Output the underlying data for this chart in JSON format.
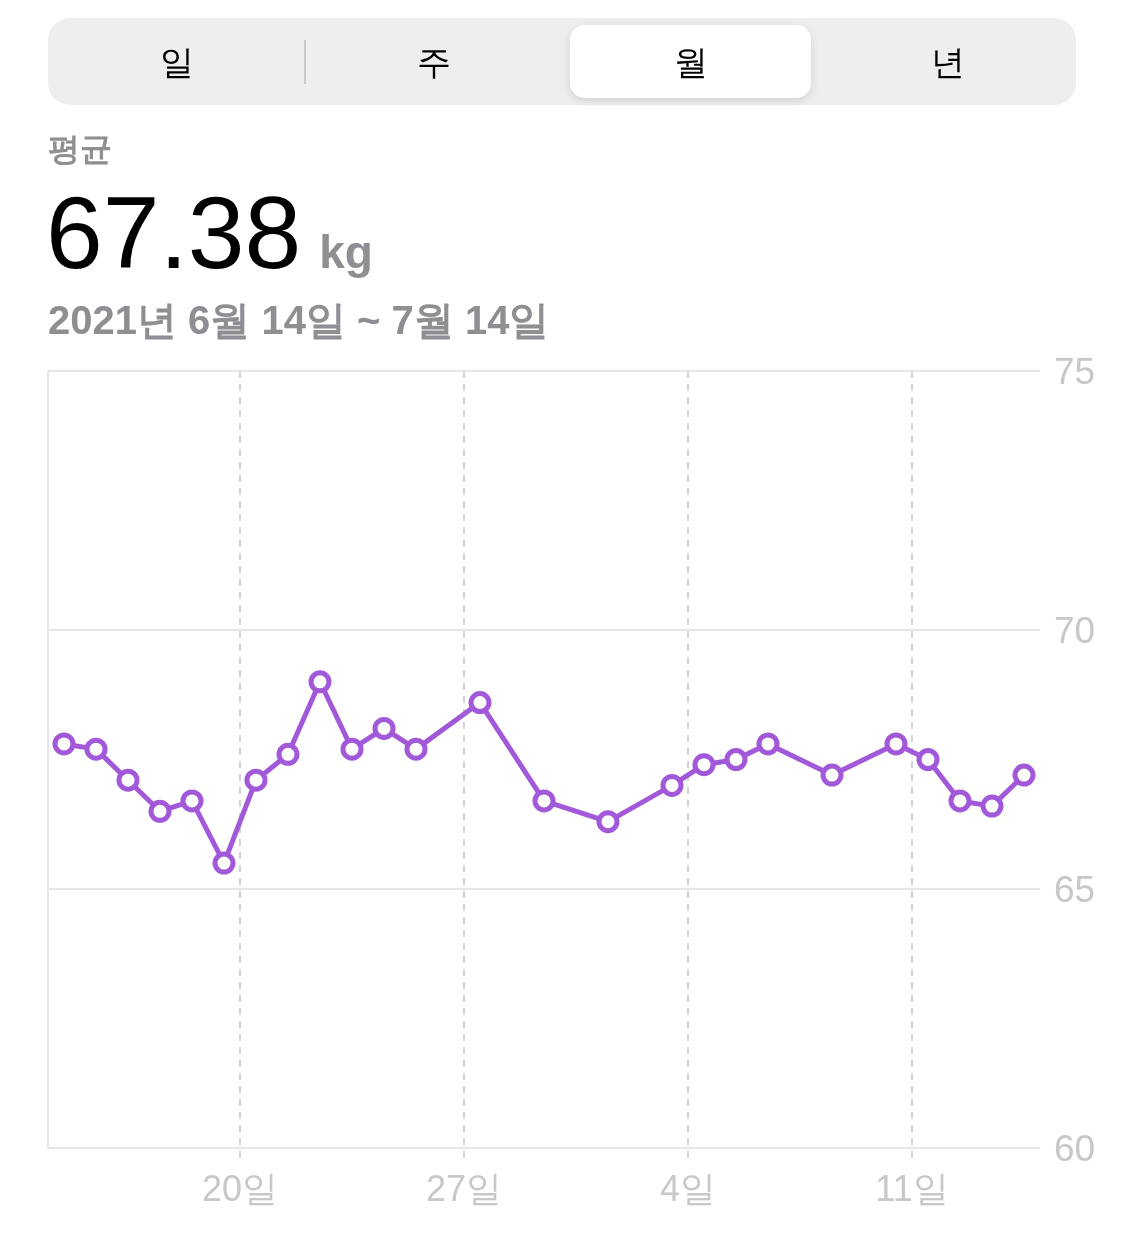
{
  "chart_data": {
    "type": "line",
    "title": "67.38",
    "ylabel": "kg",
    "subtitle": "2021년 6월 14일 ~ 7월 14일",
    "annotations": [
      "일",
      "주",
      "월",
      "년",
      "평균"
    ],
    "x": [
      "2021-06-14T12:00",
      "2021-06-15T12:00",
      "2021-06-16T12:00",
      "2021-06-17T12:00",
      "2021-06-18T12:00",
      "2021-06-19T12:00",
      "2021-06-20T12:00",
      "2021-06-21T12:00",
      "2021-06-22T12:00",
      "2021-06-23T12:00",
      "2021-06-24T12:00",
      "2021-06-25T12:00",
      "2021-06-27T12:00",
      "2021-06-29T12:00",
      "2021-07-01T12:00",
      "2021-07-03T12:00",
      "2021-07-04T12:00",
      "2021-07-05T12:00",
      "2021-07-06T12:00",
      "2021-07-08T12:00",
      "2021-07-10T12:00",
      "2021-07-11T12:00",
      "2021-07-12T12:00",
      "2021-07-13T12:00",
      "2021-07-14T12:00"
    ],
    "values": [
      67.8,
      67.7,
      67.1,
      66.5,
      66.7,
      65.5,
      67.1,
      67.6,
      69.0,
      67.7,
      68.1,
      67.7,
      68.6,
      66.7,
      66.3,
      67.0,
      67.4,
      67.5,
      67.8,
      67.2,
      67.8,
      67.5,
      66.7,
      66.6,
      67.2
    ],
    "color": "#a259d9",
    "marker": "circle",
    "line_style": "solid",
    "grid": true,
    "xlim": [
      "2021-06-14",
      "2021-07-15"
    ],
    "xticks": [
      {
        "value": "2021-06-20",
        "label": "20일"
      },
      {
        "value": "2021-06-27",
        "label": "27일"
      },
      {
        "value": "2021-07-04",
        "label": "4일"
      },
      {
        "value": "2021-07-11",
        "label": "11일"
      }
    ],
    "ylim": [
      60,
      75
    ],
    "yticks": [
      60,
      65,
      70,
      75
    ]
  }
}
